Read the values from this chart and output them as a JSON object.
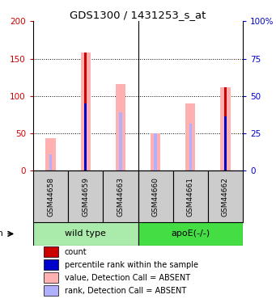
{
  "title": "GDS1300 / 1431253_s_at",
  "samples": [
    "GSM44658",
    "GSM44659",
    "GSM44663",
    "GSM44660",
    "GSM44661",
    "GSM44662"
  ],
  "groups": [
    "wild type",
    "apoE(-/-)"
  ],
  "ylim_left": [
    0,
    200
  ],
  "ylim_right": [
    0,
    100
  ],
  "yticks_left": [
    0,
    50,
    100,
    150,
    200
  ],
  "ytick_labels_left": [
    "0",
    "50",
    "100",
    "150",
    "200"
  ],
  "yticks_right": [
    0,
    25,
    50,
    75,
    100
  ],
  "ytick_labels_right": [
    "0",
    "25",
    "50",
    "75",
    "100%"
  ],
  "value_absent": [
    44,
    158,
    116,
    50,
    90,
    112
  ],
  "rank_absent": [
    22,
    0,
    78,
    50,
    63,
    0
  ],
  "count_bar": [
    0,
    158,
    0,
    0,
    0,
    112
  ],
  "rank_present": [
    0,
    90,
    0,
    0,
    0,
    73
  ],
  "color_count": "#cc0000",
  "color_rank_present": "#0000cc",
  "color_value_absent": "#ffb0b0",
  "color_rank_absent": "#b0b0ff",
  "group_color_wt": "#aaeaaa",
  "group_color_apoe": "#44dd44",
  "left_axis_color": "#cc0000",
  "right_axis_color": "#0000cc",
  "wide_bar_width": 0.28,
  "narrow_bar_width": 0.08,
  "figsize": [
    3.41,
    3.75
  ],
  "dpi": 100
}
